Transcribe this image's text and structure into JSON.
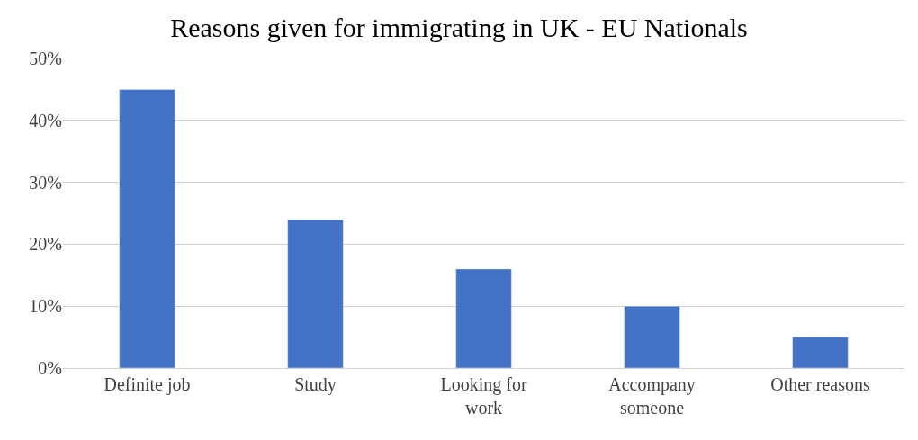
{
  "chart_data": {
    "type": "bar",
    "title": "Reasons given for immigrating in UK - EU Nationals",
    "categories": [
      "Definite job",
      "Study",
      "Looking for work",
      "Accompany someone",
      "Other reasons"
    ],
    "values": [
      45,
      24,
      16,
      10,
      5
    ],
    "color": "#4472c4",
    "ylim": [
      0,
      50
    ],
    "yticks": [
      {
        "value": 0,
        "label": "0%"
      },
      {
        "value": 10,
        "label": "10%"
      },
      {
        "value": 20,
        "label": "20%"
      },
      {
        "value": 30,
        "label": "30%"
      },
      {
        "value": 40,
        "label": "40%"
      },
      {
        "value": 50,
        "label": "50%"
      }
    ],
    "grid": "y",
    "legend": false
  }
}
